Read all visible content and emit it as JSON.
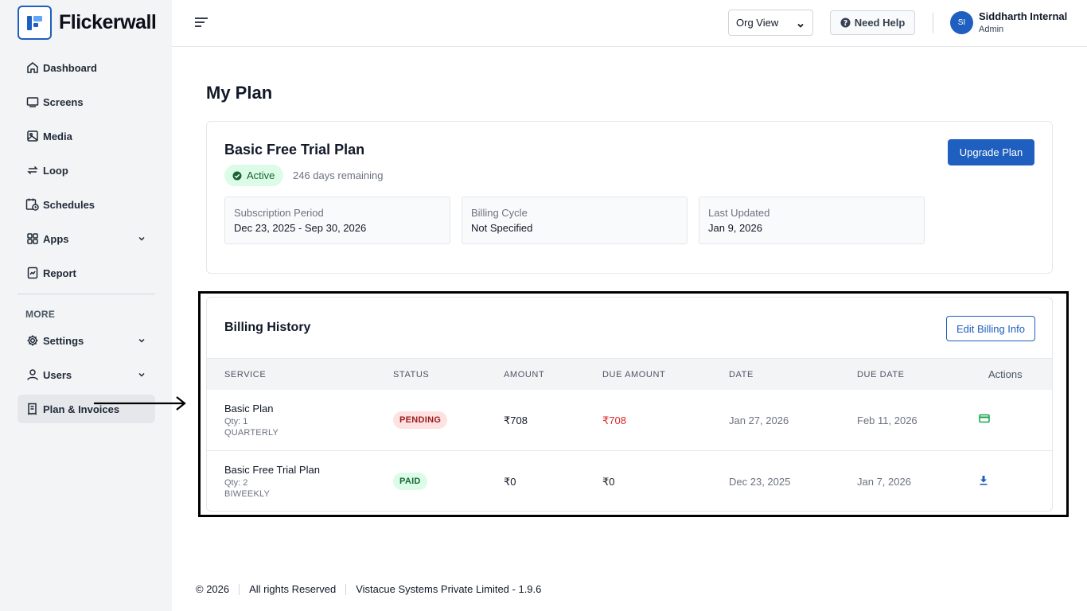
{
  "brand": {
    "name": "Flickerwall"
  },
  "sidebar": {
    "items": [
      {
        "label": "Dashboard"
      },
      {
        "label": "Screens"
      },
      {
        "label": "Media"
      },
      {
        "label": "Loop"
      },
      {
        "label": "Schedules"
      },
      {
        "label": "Apps"
      },
      {
        "label": "Report"
      }
    ],
    "more_label": "MORE",
    "more_items": [
      {
        "label": "Settings"
      },
      {
        "label": "Users"
      },
      {
        "label": "Plan & Invoices"
      }
    ]
  },
  "header": {
    "org_view": "Org View",
    "help": "Need Help",
    "user": {
      "initials": "SI",
      "name": "Siddharth Internal",
      "role": "Admin"
    }
  },
  "page": {
    "title": "My Plan"
  },
  "plan": {
    "name": "Basic Free Trial Plan",
    "status": "Active",
    "days_remaining": "246 days remaining",
    "upgrade_label": "Upgrade Plan",
    "info": [
      {
        "label": "Subscription Period",
        "value": "Dec 23, 2025 - Sep 30, 2026"
      },
      {
        "label": "Billing Cycle",
        "value": "Not Specified"
      },
      {
        "label": "Last Updated",
        "value": "Jan 9, 2026"
      }
    ]
  },
  "billing": {
    "title": "Billing History",
    "edit_label": "Edit Billing Info",
    "columns": [
      "SERVICE",
      "STATUS",
      "AMOUNT",
      "DUE AMOUNT",
      "DATE",
      "DUE DATE",
      "Actions"
    ],
    "rows": [
      {
        "service": "Basic Plan",
        "qty": "Qty: 1",
        "cycle": "QUARTERLY",
        "status": "PENDING",
        "amount": "₹708",
        "due_amount": "₹708",
        "date": "Jan 27, 2026",
        "due_date": "Feb 11, 2026",
        "action_icon": "credit-card-icon"
      },
      {
        "service": "Basic Free Trial Plan",
        "qty": "Qty: 2",
        "cycle": "BIWEEKLY",
        "status": "PAID",
        "amount": "₹0",
        "due_amount": "₹0",
        "date": "Dec 23, 2025",
        "due_date": "Jan 7, 2026",
        "action_icon": "download-icon"
      }
    ]
  },
  "footer": {
    "copyright": "© 2026",
    "rights": "All rights Reserved",
    "company": "Vistacue Systems Private Limited - 1.9.6"
  },
  "colors": {
    "primary": "#1f5fbf",
    "sidebar_bg": "#f3f4f6",
    "pending_bg": "#fee2e2",
    "pending_text": "#991b1b",
    "paid_bg": "#dcfce7",
    "paid_text": "#166534",
    "due_amount_red": "#dc2626"
  }
}
